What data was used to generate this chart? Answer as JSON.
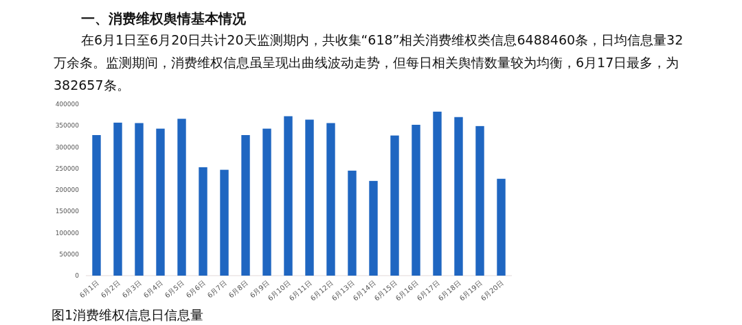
{
  "chart_data": {
    "type": "bar",
    "title": "一、消费维权舆情基本情况",
    "subtitle": "在6月1日至6月20日共计20天监测期内，共收集“618”相关消费维权类信息6488460条，日均信息量32万余条。监测期间，消费维权信息虽呈现出曲线波动走势，但每日相关舆情数量较为均衡，6月17日最多，为382657条。",
    "annotations": [
      "图1消费维权信息日信息量"
    ],
    "categories": [
      "6月1日",
      "6月2日",
      "6月3日",
      "6月4日",
      "6月5日",
      "6月6日",
      "6月7日",
      "6月8日",
      "6月9日",
      "6月10日",
      "6月11日",
      "6月12日",
      "6月13日",
      "6月14日",
      "6月15日",
      "6月16日",
      "6月17日",
      "6月18日",
      "6月19日",
      "6月20日"
    ],
    "values": [
      328000,
      357000,
      356000,
      343000,
      366000,
      253000,
      247000,
      328000,
      343000,
      372000,
      364000,
      356000,
      245000,
      221000,
      327000,
      352000,
      382657,
      370000,
      349000,
      226000
    ],
    "color": "#1f66c1",
    "ylim": [
      0,
      400000
    ],
    "yticks": [
      0,
      50000,
      100000,
      150000,
      200000,
      250000,
      300000,
      350000,
      400000
    ]
  }
}
